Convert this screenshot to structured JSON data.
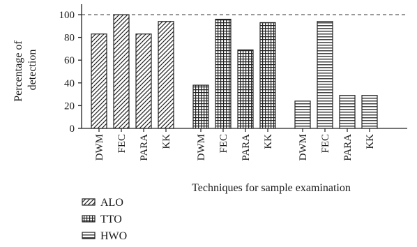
{
  "chart_data": {
    "type": "bar",
    "xlabel": "Techniques for sample examination",
    "ylabel": "Percentage of detection",
    "ylim": [
      0,
      100
    ],
    "yticks": [
      0,
      20,
      40,
      60,
      80,
      100
    ],
    "reference_line": 100,
    "grid": false,
    "legend_position": "bottom-left",
    "groups": [
      {
        "name": "ALO",
        "pattern": "diagonal-hatch",
        "categories": [
          "DWM",
          "FEC",
          "PARA",
          "KK"
        ],
        "values": [
          83,
          100,
          83,
          94
        ]
      },
      {
        "name": "TTO",
        "pattern": "grid-hatch",
        "categories": [
          "DWM",
          "FEC",
          "PARA",
          "KK"
        ],
        "values": [
          38,
          96,
          69,
          93
        ]
      },
      {
        "name": "HWO",
        "pattern": "horizontal-hatch",
        "categories": [
          "DWM",
          "FEC",
          "PARA",
          "KK"
        ],
        "values": [
          24,
          94,
          29,
          29
        ]
      }
    ]
  }
}
